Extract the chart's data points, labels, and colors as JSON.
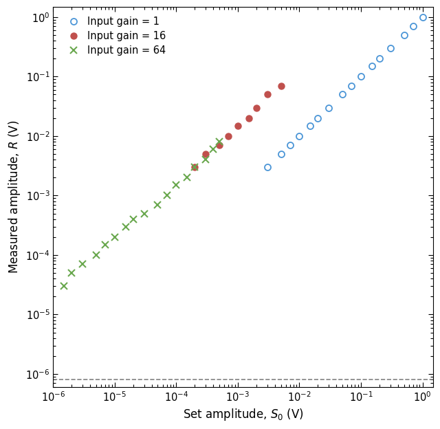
{
  "xlabel": "Set amplitude, $S_0$ (V)",
  "ylabel": "Measured amplitude, $R$ (V)",
  "xlim": [
    1e-06,
    1.5
  ],
  "ylim": [
    6e-07,
    1.5
  ],
  "dashed_line_y": 8e-07,
  "gain1": {
    "label": "Input gain = 1",
    "color": "#4C96D7",
    "marker": "o",
    "fillstyle": "none",
    "x": [
      0.003,
      0.005,
      0.007,
      0.01,
      0.015,
      0.02,
      0.03,
      0.05,
      0.07,
      0.1,
      0.15,
      0.2,
      0.3,
      0.5,
      0.7,
      1.0
    ],
    "y": [
      0.003,
      0.005,
      0.007,
      0.01,
      0.015,
      0.02,
      0.03,
      0.05,
      0.07,
      0.1,
      0.15,
      0.2,
      0.3,
      0.5,
      0.7,
      1.0
    ]
  },
  "gain16": {
    "label": "Input gain = 16",
    "color": "#C0504D",
    "marker": "o",
    "fillstyle": "full",
    "x": [
      0.0002,
      0.0003,
      0.0005,
      0.0007,
      0.001,
      0.0015,
      0.002,
      0.003,
      0.005
    ],
    "y": [
      0.003,
      0.005,
      0.007,
      0.01,
      0.015,
      0.02,
      0.03,
      0.05,
      0.07
    ]
  },
  "gain64": {
    "label": "Input gain = 64",
    "color": "#6AA84F",
    "marker": "x",
    "x": [
      1.5e-06,
      2e-06,
      3e-06,
      5e-06,
      7e-06,
      1e-05,
      1.5e-05,
      2e-05,
      3e-05,
      5e-05,
      7e-05,
      0.0001,
      0.00015,
      0.0002,
      0.0003,
      0.0004,
      0.0005
    ],
    "y": [
      3e-05,
      5e-05,
      7e-05,
      0.0001,
      0.00015,
      0.0002,
      0.0003,
      0.0004,
      0.0005,
      0.0007,
      0.001,
      0.0015,
      0.002,
      0.003,
      0.004,
      0.006,
      0.008
    ]
  }
}
